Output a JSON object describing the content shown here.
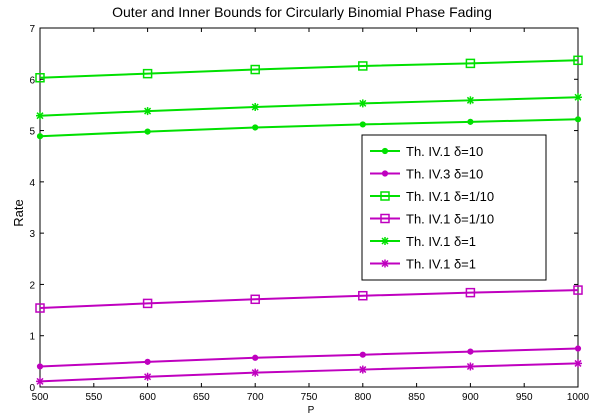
{
  "chart_data": {
    "type": "line",
    "title": "Outer and Inner Bounds for Circularly Binomial Phase Fading",
    "xlabel": "P",
    "ylabel": "Rate",
    "xlim": [
      500,
      1000
    ],
    "ylim": [
      0,
      7
    ],
    "xticks": [
      500,
      550,
      600,
      650,
      700,
      750,
      800,
      850,
      900,
      950,
      1000
    ],
    "yticks": [
      0,
      1,
      2,
      3,
      4,
      5,
      6,
      7
    ],
    "grid": false,
    "legend_position": "right",
    "x": [
      500,
      600,
      700,
      800,
      900,
      1000
    ],
    "series": [
      {
        "name": "Th. IV.1 δ=10",
        "color": "#00e000",
        "marker": "dot",
        "values": [
          4.89,
          4.98,
          5.06,
          5.12,
          5.17,
          5.22
        ]
      },
      {
        "name": "Th. IV.3 δ=10",
        "color": "#bf00bf",
        "marker": "dot",
        "values": [
          0.4,
          0.49,
          0.57,
          0.63,
          0.69,
          0.75
        ]
      },
      {
        "name": "Th. IV.1 δ=1/10",
        "color": "#00e000",
        "marker": "square",
        "values": [
          6.03,
          6.11,
          6.19,
          6.26,
          6.31,
          6.37
        ]
      },
      {
        "name": "Th. IV.1 δ=1/10",
        "color": "#bf00bf",
        "marker": "square",
        "values": [
          1.54,
          1.63,
          1.71,
          1.78,
          1.84,
          1.89
        ]
      },
      {
        "name": "Th. IV.1 δ=1",
        "color": "#00e000",
        "marker": "star",
        "values": [
          5.29,
          5.38,
          5.46,
          5.53,
          5.59,
          5.65
        ]
      },
      {
        "name": "Th. IV.1 δ=1",
        "color": "#bf00bf",
        "marker": "star",
        "values": [
          0.11,
          0.2,
          0.28,
          0.34,
          0.4,
          0.46
        ]
      }
    ]
  }
}
